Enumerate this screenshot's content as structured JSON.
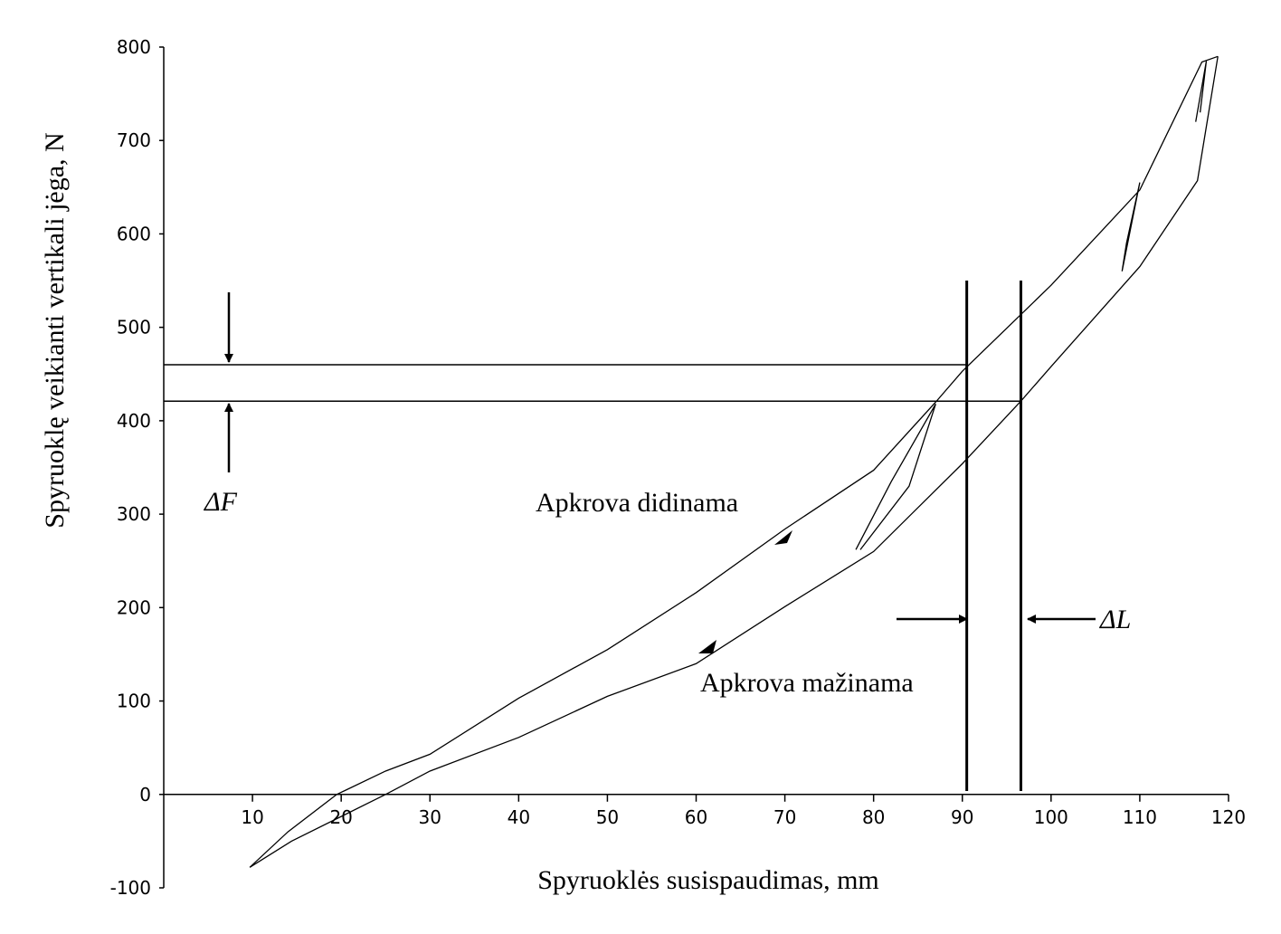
{
  "chart_data": {
    "type": "line",
    "x_label": "Spyruoklės susispaudimas, mm",
    "y_label": "Spyruoklę veikianti vertikali jėga, N",
    "xlim": [
      0,
      120
    ],
    "xticks": [
      10,
      20,
      30,
      40,
      50,
      60,
      70,
      80,
      90,
      100,
      110,
      120
    ],
    "ylim": [
      -100,
      800
    ],
    "yticks": [
      -100,
      0,
      100,
      200,
      300,
      400,
      500,
      600,
      700,
      800
    ],
    "series": [
      {
        "color": "#000000",
        "x": [
          9.7,
          14,
          19.5,
          25,
          30,
          40,
          50,
          60,
          70,
          80,
          87,
          90,
          100,
          110,
          117,
          118.8
        ],
        "values": [
          -78,
          -40,
          0,
          25,
          43,
          103,
          155,
          216,
          284,
          347,
          420,
          453,
          545,
          647,
          784,
          790
        ]
      },
      {
        "color": "#000000",
        "x": [
          118.8,
          116.5,
          110,
          100,
          96.6,
          90,
          80,
          70,
          60,
          50,
          40,
          30,
          25,
          14.4,
          9.7
        ],
        "values": [
          790,
          657,
          565,
          458,
          421,
          354,
          260,
          201,
          140,
          105,
          61,
          25,
          0,
          -50,
          -78
        ]
      },
      {
        "color": "#000000",
        "x": [
          78,
          82,
          87,
          84,
          78.5
        ],
        "values": [
          262,
          335,
          418,
          330,
          262
        ]
      },
      {
        "color": "#000000",
        "x": [
          108,
          110,
          108.5,
          108
        ],
        "values": [
          560,
          655,
          590,
          560
        ]
      },
      {
        "color": "#000000",
        "x": [
          116.3,
          117.5,
          116.8
        ],
        "values": [
          720,
          785,
          730
        ]
      }
    ],
    "reference_lines": {
      "y": [
        460,
        421
      ],
      "x": [
        90.5,
        96.6
      ]
    },
    "annotations": [
      "ΔF",
      "ΔL",
      "Apkrova didinama",
      "Apkrova mažinama"
    ]
  }
}
